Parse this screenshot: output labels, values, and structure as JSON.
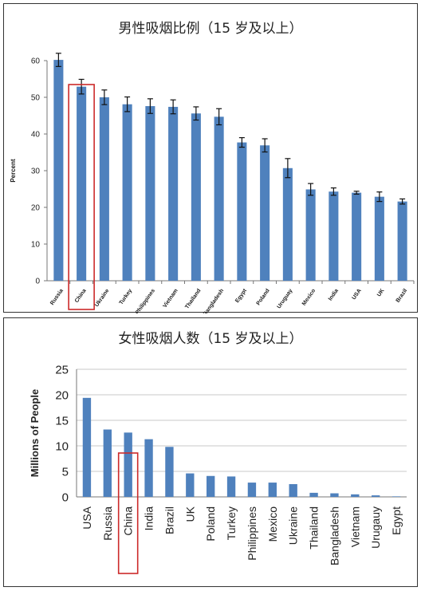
{
  "chart_data": [
    {
      "type": "bar",
      "title": "男性吸烟比例（15 岁及以上）",
      "ylabel": "Percent",
      "xlabel": "",
      "ylim": [
        0,
        60
      ],
      "yticks": [
        0,
        10,
        20,
        30,
        40,
        50,
        60
      ],
      "grid": false,
      "error_bars": true,
      "highlight": "China",
      "bar_color": "#4f81bd",
      "highlight_color": "#cc2a2a",
      "categories": [
        "Russia",
        "China",
        "Ukraine",
        "Turkey",
        "Philippines",
        "Vietnam",
        "Thailand",
        "Bangladesh",
        "Egypt",
        "Poland",
        "Uruguay",
        "Mexico",
        "India",
        "USA",
        "UK",
        "Brazil"
      ],
      "values": [
        60.2,
        52.9,
        50.0,
        48.1,
        47.6,
        47.4,
        45.6,
        44.7,
        37.7,
        36.9,
        30.7,
        24.9,
        24.3,
        24.0,
        22.9,
        21.6
      ],
      "errors": [
        1.8,
        2.0,
        2.0,
        2.0,
        2.0,
        1.9,
        1.8,
        2.2,
        1.3,
        1.8,
        2.6,
        1.6,
        1.0,
        0.4,
        1.3,
        0.7
      ]
    },
    {
      "type": "bar",
      "title": "女性吸烟人数（15 岁及以上）",
      "ylabel": "Millions of People",
      "xlabel": "",
      "ylim": [
        0,
        25
      ],
      "yticks": [
        0,
        5,
        10,
        15,
        20,
        25
      ],
      "grid": true,
      "highlight": "China",
      "bar_color": "#4f81bd",
      "highlight_color": "#cc2a2a",
      "categories": [
        "USA",
        "Russia",
        "China",
        "India",
        "Brazil",
        "UK",
        "Poland",
        "Turkey",
        "Philippines",
        "Mexico",
        "Ukraine",
        "Thailand",
        "Bangladesh",
        "Vietnam",
        "Urugauy",
        "Egypt"
      ],
      "values": [
        19.4,
        13.2,
        12.6,
        11.3,
        9.8,
        4.6,
        4.1,
        4.0,
        2.8,
        2.8,
        2.5,
        0.8,
        0.7,
        0.5,
        0.3,
        0.1
      ]
    }
  ]
}
